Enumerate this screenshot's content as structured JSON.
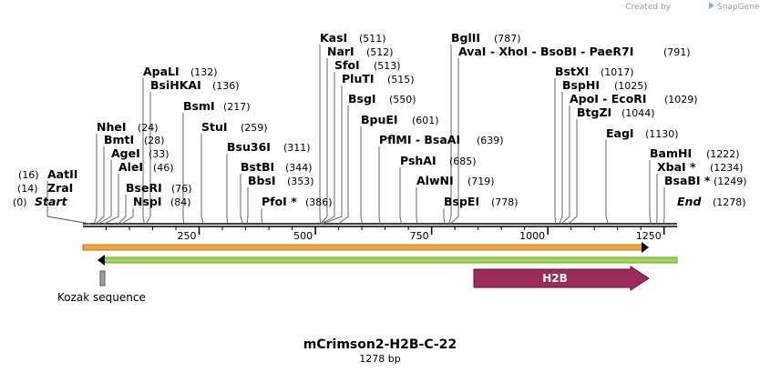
{
  "credit": {
    "prefix": "Created by",
    "brand": "SnapGene"
  },
  "title": "mCrimson2-H2B-C-22",
  "length_label": "1278 bp",
  "sequence_length": 1278,
  "ruler_ticks": [
    {
      "label": "250",
      "value": 250
    },
    {
      "label": "500",
      "value": 500
    },
    {
      "label": "750",
      "value": 750
    },
    {
      "label": "1000",
      "value": 1000
    },
    {
      "label": "1250",
      "value": 1250
    }
  ],
  "sites": [
    {
      "name": "Start",
      "pos": "(0)",
      "bp": 0,
      "italic": true
    },
    {
      "name": "ZraI",
      "pos": "(14)",
      "bp": 14
    },
    {
      "name": "AatII",
      "pos": "(16)",
      "bp": 16
    },
    {
      "name": "NheI",
      "pos": "(24)",
      "bp": 24
    },
    {
      "name": "BmtI",
      "pos": "(28)",
      "bp": 28
    },
    {
      "name": "AgeI",
      "pos": "(33)",
      "bp": 33
    },
    {
      "name": "AleI",
      "pos": "(46)",
      "bp": 46
    },
    {
      "name": "BseRI",
      "pos": "(76)",
      "bp": 76
    },
    {
      "name": "NspI",
      "pos": "(84)",
      "bp": 84
    },
    {
      "name": "ApaLI",
      "pos": "(132)",
      "bp": 132
    },
    {
      "name": "BsiHKAI",
      "pos": "(136)",
      "bp": 136
    },
    {
      "name": "BsmI",
      "pos": "(217)",
      "bp": 217
    },
    {
      "name": "StuI",
      "pos": "(259)",
      "bp": 259
    },
    {
      "name": "Bsu36I",
      "pos": "(311)",
      "bp": 311
    },
    {
      "name": "BstBI",
      "pos": "(344)",
      "bp": 344
    },
    {
      "name": "BbsI",
      "pos": "(353)",
      "bp": 353
    },
    {
      "name": "PfoI *",
      "pos": "(386)",
      "bp": 386
    },
    {
      "name": "KasI",
      "pos": "(511)",
      "bp": 511
    },
    {
      "name": "NarI",
      "pos": "(512)",
      "bp": 512
    },
    {
      "name": "SfoI",
      "pos": "(513)",
      "bp": 513
    },
    {
      "name": "PluTI",
      "pos": "(515)",
      "bp": 515
    },
    {
      "name": "BsgI",
      "pos": "(550)",
      "bp": 550
    },
    {
      "name": "BpuEI",
      "pos": "(601)",
      "bp": 601
    },
    {
      "name": "PflMI - BsaAI",
      "pos": "(639)",
      "bp": 639
    },
    {
      "name": "PshAI",
      "pos": "(685)",
      "bp": 685
    },
    {
      "name": "AlwNI",
      "pos": "(719)",
      "bp": 719
    },
    {
      "name": "BspEI",
      "pos": "(778)",
      "bp": 778
    },
    {
      "name": "BglII",
      "pos": "(787)",
      "bp": 787
    },
    {
      "name": "AvaI - XhoI - BsoBI - PaeR7I",
      "pos": "(791)",
      "bp": 791
    },
    {
      "name": "BstXI",
      "pos": "(1017)",
      "bp": 1017
    },
    {
      "name": "BspHI",
      "pos": "(1025)",
      "bp": 1025
    },
    {
      "name": "ApoI - EcoRI",
      "pos": "(1029)",
      "bp": 1029
    },
    {
      "name": "BtgZI",
      "pos": "(1044)",
      "bp": 1044
    },
    {
      "name": "EagI",
      "pos": "(1130)",
      "bp": 1130
    },
    {
      "name": "BamHI",
      "pos": "(1222)",
      "bp": 1222
    },
    {
      "name": "XbaI *",
      "pos": "(1234)",
      "bp": 1234
    },
    {
      "name": "BsaBI *",
      "pos": "(1249)",
      "bp": 1249
    },
    {
      "name": "End",
      "pos": "(1278)",
      "bp": 1278,
      "italic": true
    }
  ],
  "features": {
    "orange_bar": {
      "color": "#f0a030",
      "start_bp": 0,
      "end_bp": 1240,
      "direction": "forward"
    },
    "green_bar": {
      "color": "#9ad24a",
      "start_bp": 20,
      "end_bp": 1278,
      "direction": "reverse"
    },
    "kozak": {
      "label": "Kozak sequence",
      "color": "#9a9a9a",
      "bp": 22
    },
    "h2b": {
      "label": "H2B",
      "color": "#9c2a5a",
      "start_bp": 854,
      "end_bp": 1240,
      "direction": "forward"
    }
  }
}
